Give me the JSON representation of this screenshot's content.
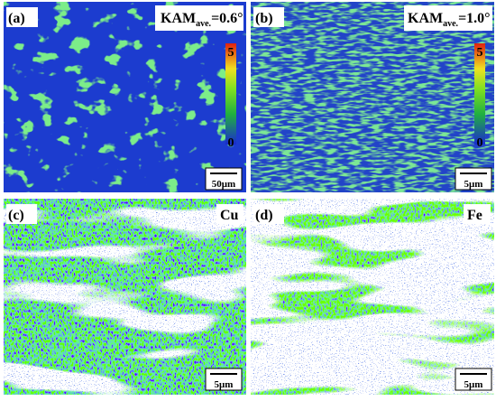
{
  "panels": [
    {
      "label": "(a)",
      "kam": "KAM",
      "sub": "ave.",
      "val": "=0.6°",
      "bar_max": "5",
      "bar_min": "0",
      "scale": "50μm"
    },
    {
      "label": "(b)",
      "kam": "KAM",
      "sub": "ave.",
      "val": "=1.0°",
      "bar_max": "5",
      "bar_min": "0",
      "scale": "5μm"
    },
    {
      "label": "(c)",
      "element": "Cu",
      "scale": "5μm"
    },
    {
      "label": "(d)",
      "element": "Fe",
      "scale": "5μm"
    }
  ]
}
